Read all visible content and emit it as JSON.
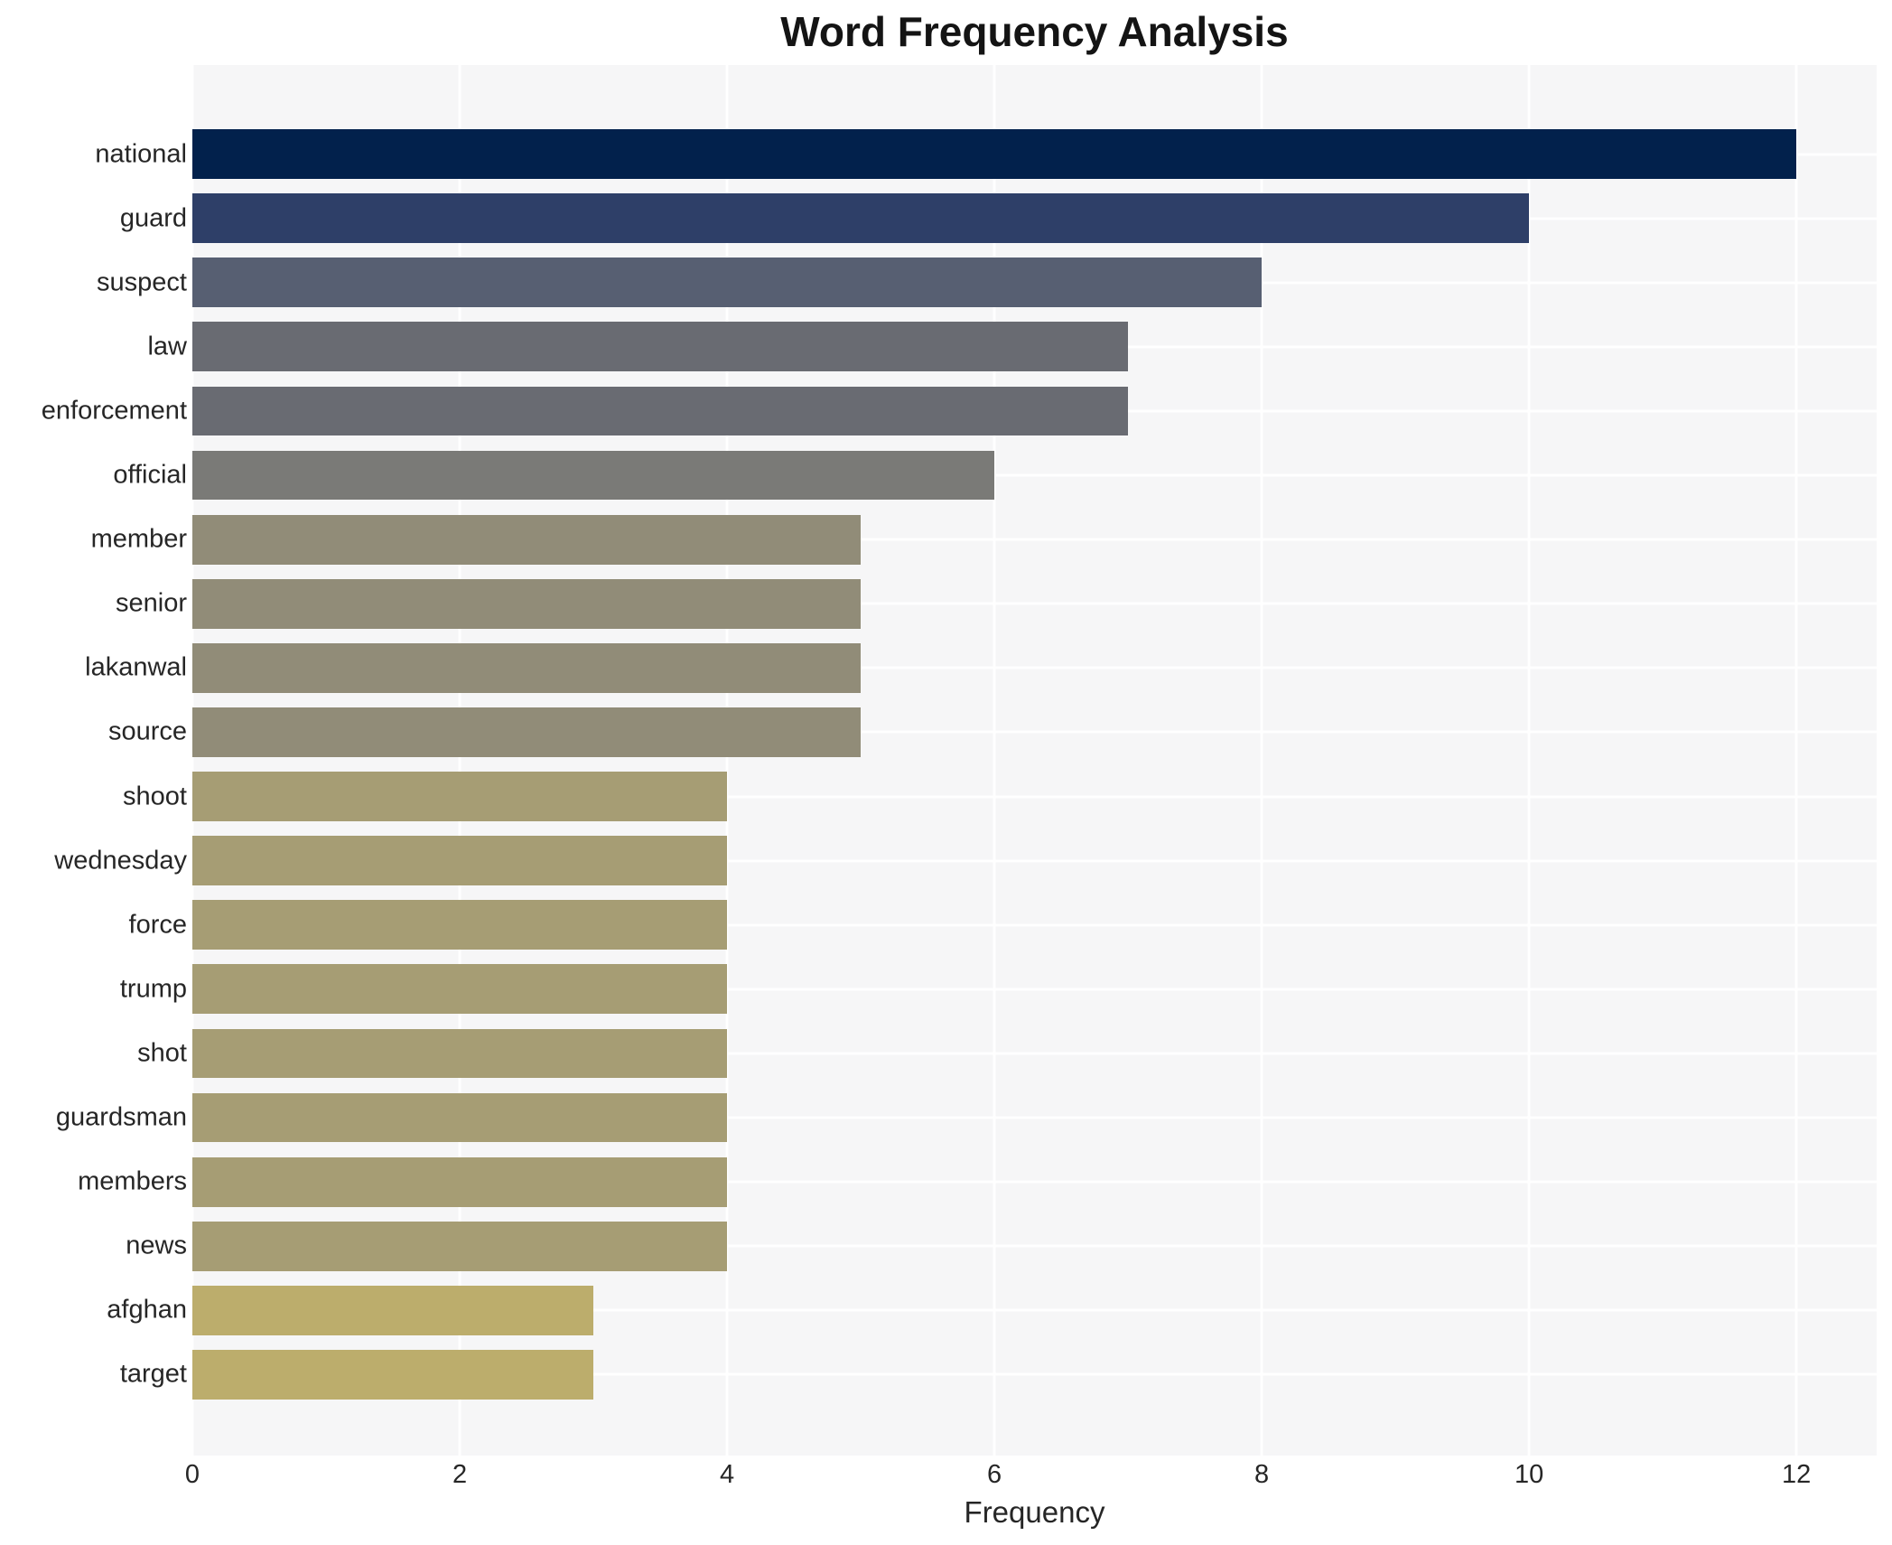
{
  "title": "Word Frequency Analysis",
  "chart_data": {
    "type": "bar",
    "orientation": "horizontal",
    "title": "Word Frequency Analysis",
    "xlabel": "Frequency",
    "ylabel": "",
    "categories": [
      "national",
      "guard",
      "suspect",
      "law",
      "enforcement",
      "official",
      "member",
      "senior",
      "lakanwal",
      "source",
      "shoot",
      "wednesday",
      "force",
      "trump",
      "shot",
      "guardsman",
      "members",
      "news",
      "afghan",
      "target"
    ],
    "values": [
      12,
      10,
      8,
      7,
      7,
      6,
      5,
      5,
      5,
      5,
      4,
      4,
      4,
      4,
      4,
      4,
      4,
      4,
      3,
      3
    ],
    "bar_colors": [
      "#02214c",
      "#2e3f68",
      "#575f72",
      "#696b72",
      "#696b72",
      "#7a7a77",
      "#918c78",
      "#918c78",
      "#918c78",
      "#918c78",
      "#a69d74",
      "#a69d74",
      "#a69d74",
      "#a69d74",
      "#a69d74",
      "#a69d74",
      "#a69d74",
      "#a69d74",
      "#bcad6c",
      "#bcad6c"
    ],
    "xticks": [
      0,
      2,
      4,
      6,
      8,
      10,
      12
    ],
    "xlim": [
      0,
      12.6
    ],
    "grid": true,
    "legend": "none",
    "plot_bg_color": "#f6f6f7",
    "grid_color": "#ffffff",
    "text_color": "#262626",
    "title_color": "#141414"
  }
}
